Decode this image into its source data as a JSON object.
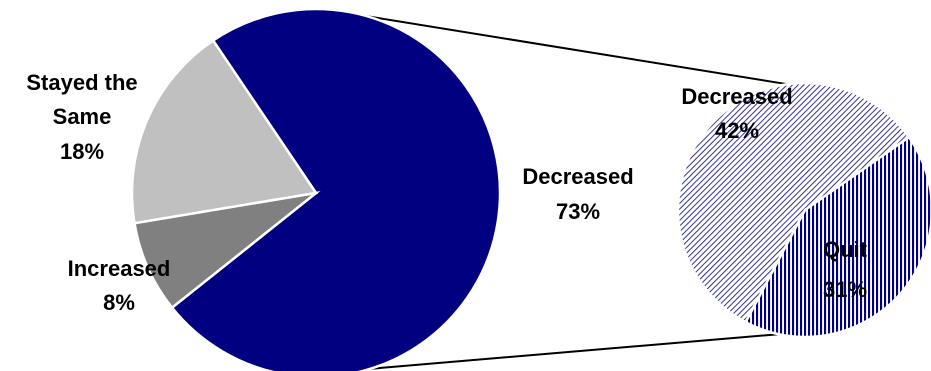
{
  "chart_data": {
    "type": "pie",
    "main_pie": {
      "slices": [
        {
          "label": "Decreased",
          "value": 73,
          "display": "73%",
          "color": "#000080"
        },
        {
          "label": "Stayed the Same",
          "value": 18,
          "display": "18%",
          "color": "#c0c0c0"
        },
        {
          "label": "Increased",
          "value": 8,
          "display": "8%",
          "color": "#808080"
        }
      ]
    },
    "breakdown_pie": {
      "of_slice": "Decreased",
      "slices": [
        {
          "label": "Decreased",
          "value": 42,
          "display": "42%",
          "pattern": "diagonal-hatch",
          "color": "#000080"
        },
        {
          "label": "Quit",
          "value": 31,
          "display": "31%",
          "pattern": "vertical-hatch",
          "color": "#000080"
        }
      ]
    },
    "legend": "none"
  }
}
